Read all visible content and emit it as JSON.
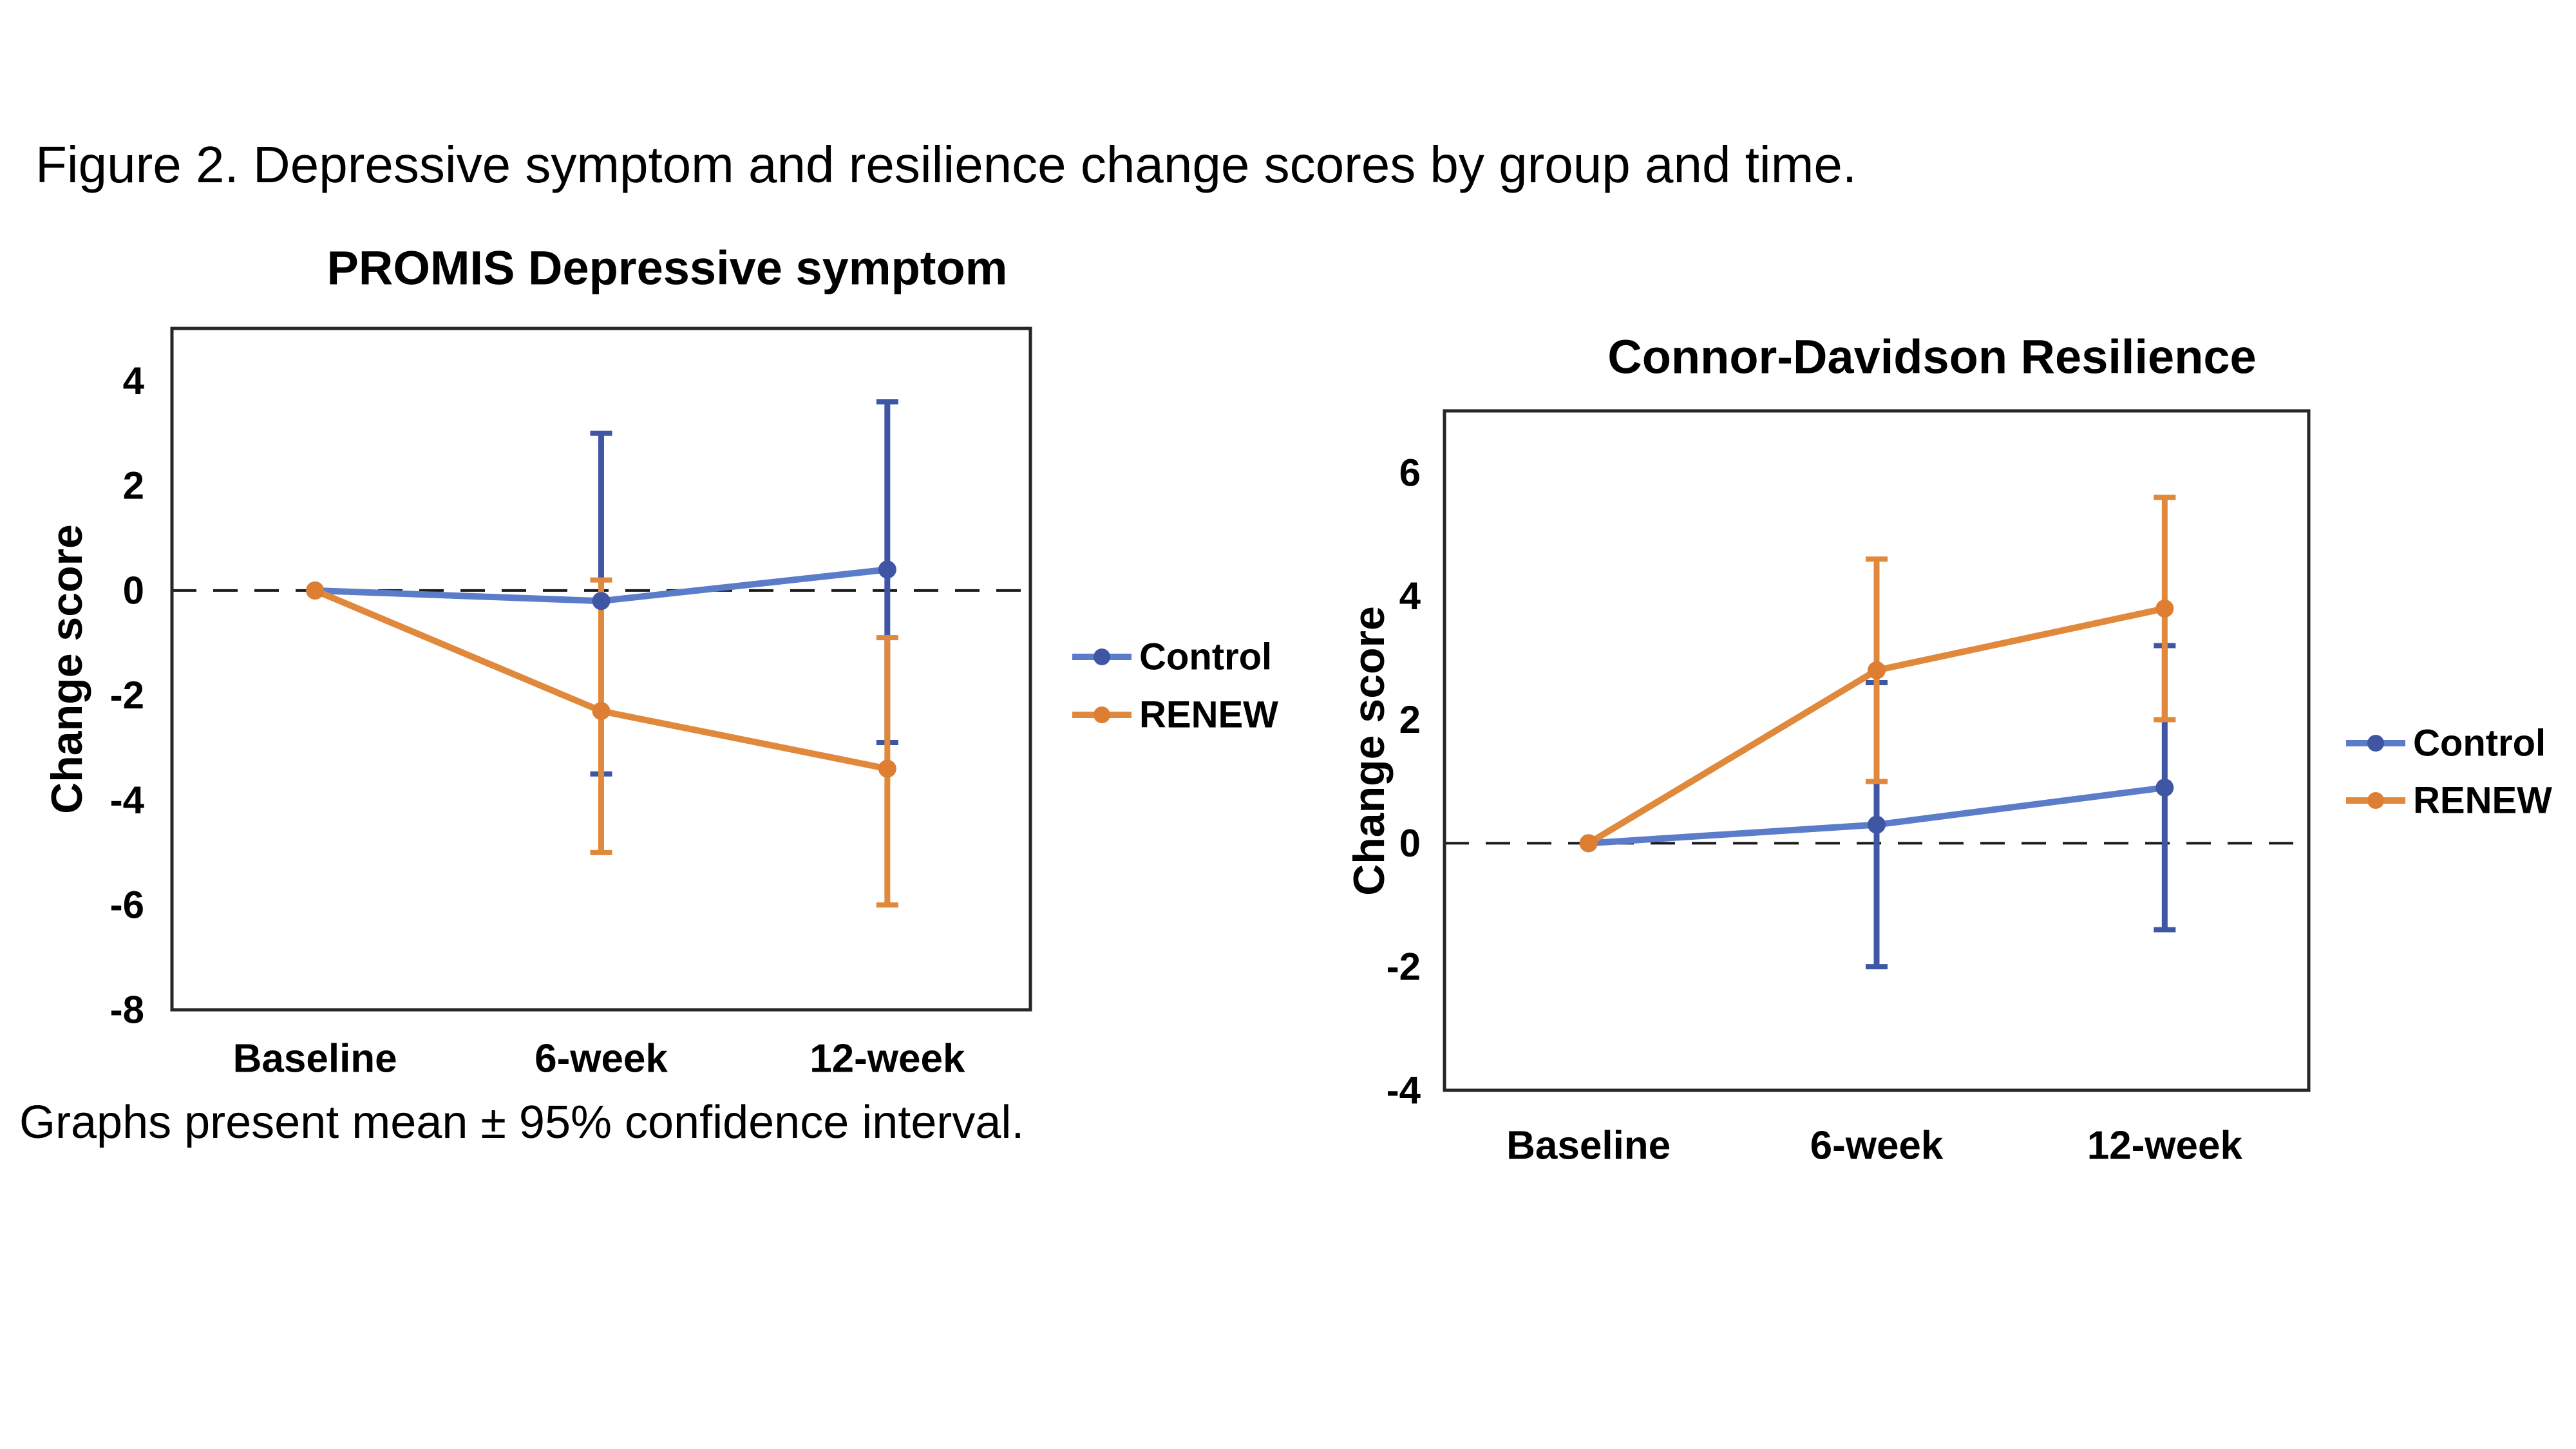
{
  "figure_title": "Figure 2. Depressive symptom and resilience change scores by group and time.",
  "caption": "Graphs present mean ± 95% confidence interval.",
  "colors": {
    "control_line": "#5B7CC8",
    "control_marker": "#3E56A3",
    "renew_line": "#E0883C",
    "renew_marker": "#DD7E33",
    "zero_line": "#1a1a1a",
    "axis_border": "#262626",
    "text": "#000000"
  },
  "legend": {
    "control_label": "Control",
    "renew_label": "RENEW"
  },
  "chart_data": [
    {
      "type": "line",
      "title": "PROMIS Depressive symptom",
      "ylabel": "Change score",
      "xlabel": "",
      "categories": [
        "Baseline",
        "6-week",
        "12-week"
      ],
      "yticks": [
        4,
        2,
        0,
        -2,
        -4,
        -6,
        -8
      ],
      "ylim": [
        -8,
        5
      ],
      "grid": false,
      "legend_position": "right",
      "zero_reference_line": "dashed",
      "error_bars": "95% CI",
      "series": [
        {
          "name": "Control",
          "values": [
            0,
            -0.2,
            0.4
          ],
          "ci_upper": [
            0,
            3.0,
            3.6
          ],
          "ci_lower": [
            0,
            -3.5,
            -2.9
          ]
        },
        {
          "name": "RENEW",
          "values": [
            0,
            -2.3,
            -3.4
          ],
          "ci_upper": [
            0,
            0.2,
            -0.9
          ],
          "ci_lower": [
            0,
            -5.0,
            -6.0
          ]
        }
      ]
    },
    {
      "type": "line",
      "title": "Connor-Davidson Resilience",
      "ylabel": "Change score",
      "xlabel": "",
      "categories": [
        "Baseline",
        "6-week",
        "12-week"
      ],
      "yticks": [
        6,
        4,
        2,
        0,
        -2,
        -4
      ],
      "ylim": [
        -4,
        7
      ],
      "grid": false,
      "legend_position": "right",
      "zero_reference_line": "dashed",
      "error_bars": "95% CI",
      "series": [
        {
          "name": "Control",
          "values": [
            0,
            0.3,
            0.9
          ],
          "ci_upper": [
            0,
            2.6,
            3.2
          ],
          "ci_lower": [
            0,
            -2.0,
            -1.4
          ]
        },
        {
          "name": "RENEW",
          "values": [
            0,
            2.8,
            3.8
          ],
          "ci_upper": [
            0,
            4.6,
            5.6
          ],
          "ci_lower": [
            0,
            1.0,
            2.0
          ]
        }
      ]
    }
  ]
}
